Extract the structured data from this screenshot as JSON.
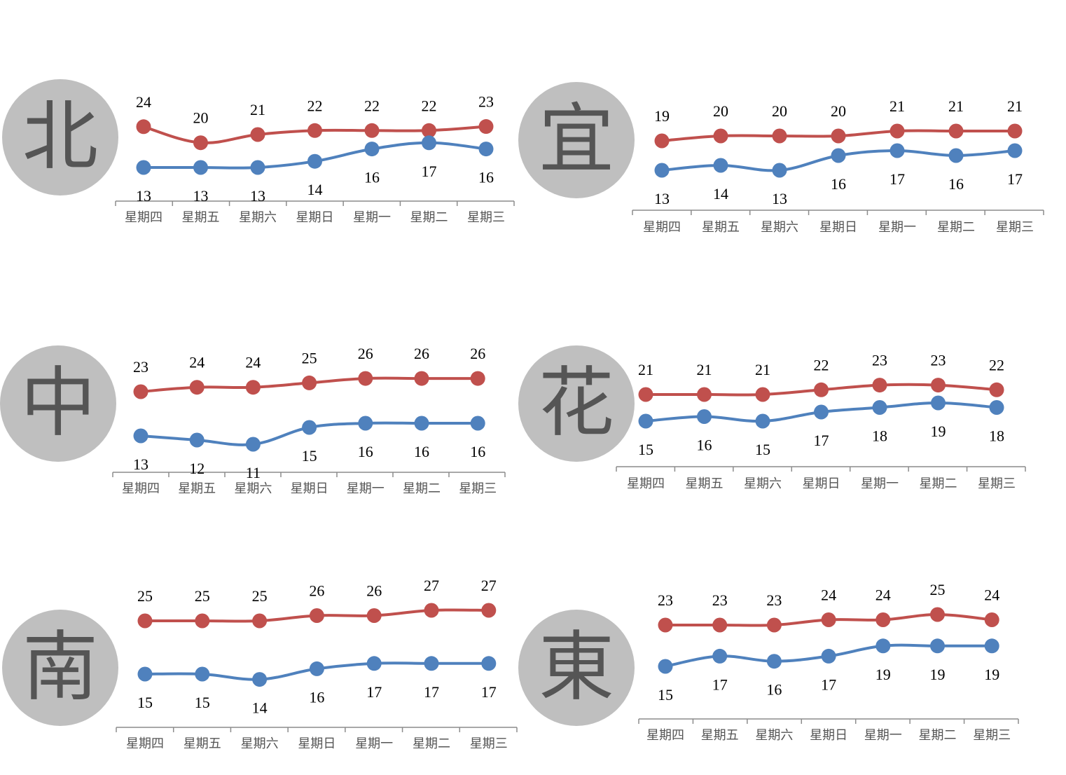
{
  "colors": {
    "high": "#c0504d",
    "low": "#4f81bd",
    "badge": "#bfbfbf",
    "axis": "#8c8c8c"
  },
  "chart_data": [
    {
      "type": "line",
      "region": "北",
      "categories": [
        "星期四",
        "星期五",
        "星期六",
        "星期日",
        "星期一",
        "星期二",
        "星期三"
      ],
      "series": [
        {
          "values": [
            24,
            20,
            21,
            22,
            22,
            22,
            23
          ]
        },
        {
          "values": [
            13,
            13,
            13,
            14,
            16,
            17,
            16
          ]
        }
      ]
    },
    {
      "type": "line",
      "region": "宜",
      "categories": [
        "星期四",
        "星期五",
        "星期六",
        "星期日",
        "星期一",
        "星期二",
        "星期三"
      ],
      "series": [
        {
          "values": [
            19,
            20,
            20,
            20,
            21,
            21,
            21
          ]
        },
        {
          "values": [
            13,
            14,
            13,
            16,
            17,
            16,
            17
          ]
        }
      ]
    },
    {
      "type": "line",
      "region": "中",
      "categories": [
        "星期四",
        "星期五",
        "星期六",
        "星期日",
        "星期一",
        "星期二",
        "星期三"
      ],
      "series": [
        {
          "values": [
            23,
            24,
            24,
            25,
            26,
            26,
            26
          ]
        },
        {
          "values": [
            13,
            12,
            11,
            15,
            16,
            16,
            16
          ]
        }
      ]
    },
    {
      "type": "line",
      "region": "花",
      "categories": [
        "星期四",
        "星期五",
        "星期六",
        "星期日",
        "星期一",
        "星期二",
        "星期三"
      ],
      "series": [
        {
          "values": [
            21,
            21,
            21,
            22,
            23,
            23,
            22
          ]
        },
        {
          "values": [
            15,
            16,
            15,
            17,
            18,
            19,
            18
          ]
        }
      ]
    },
    {
      "type": "line",
      "region": "南",
      "categories": [
        "星期四",
        "星期五",
        "星期六",
        "星期日",
        "星期一",
        "星期二",
        "星期三"
      ],
      "series": [
        {
          "values": [
            25,
            25,
            25,
            26,
            26,
            27,
            27
          ]
        },
        {
          "values": [
            15,
            15,
            14,
            16,
            17,
            17,
            17
          ]
        }
      ]
    },
    {
      "type": "line",
      "region": "東",
      "categories": [
        "星期四",
        "星期五",
        "星期六",
        "星期日",
        "星期一",
        "星期二",
        "星期三"
      ],
      "series": [
        {
          "values": [
            23,
            23,
            23,
            24,
            24,
            25,
            24
          ]
        },
        {
          "values": [
            15,
            17,
            16,
            17,
            19,
            19,
            19
          ]
        }
      ]
    }
  ]
}
